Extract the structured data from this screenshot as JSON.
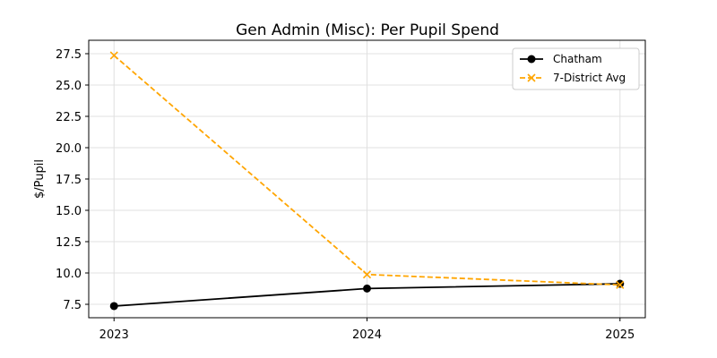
{
  "chart_data": {
    "type": "line",
    "title": "Gen Admin (Misc): Per Pupil Spend",
    "xlabel": "",
    "ylabel": "$/Pupil",
    "x": [
      2023,
      2024,
      2025
    ],
    "x_tick_labels": [
      "2023",
      "2024",
      "2025"
    ],
    "y_ticks": [
      7.5,
      10.0,
      12.5,
      15.0,
      17.5,
      20.0,
      22.5,
      25.0,
      27.5
    ],
    "y_tick_labels": [
      "7.5",
      "10.0",
      "12.5",
      "15.0",
      "17.5",
      "20.0",
      "22.5",
      "25.0",
      "27.5"
    ],
    "xlim": [
      2022.9,
      2025.1
    ],
    "ylim": [
      6.43,
      28.57
    ],
    "grid": true,
    "legend_position": "top-right",
    "series": [
      {
        "name": "Chatham",
        "values": [
          7.36,
          8.76,
          9.14
        ],
        "color": "#000000",
        "marker": "circle",
        "dash": "solid"
      },
      {
        "name": "7-District Avg",
        "values": [
          27.36,
          9.88,
          9.05
        ],
        "color": "#FFA500",
        "marker": "x",
        "dash": "dashed"
      }
    ]
  }
}
